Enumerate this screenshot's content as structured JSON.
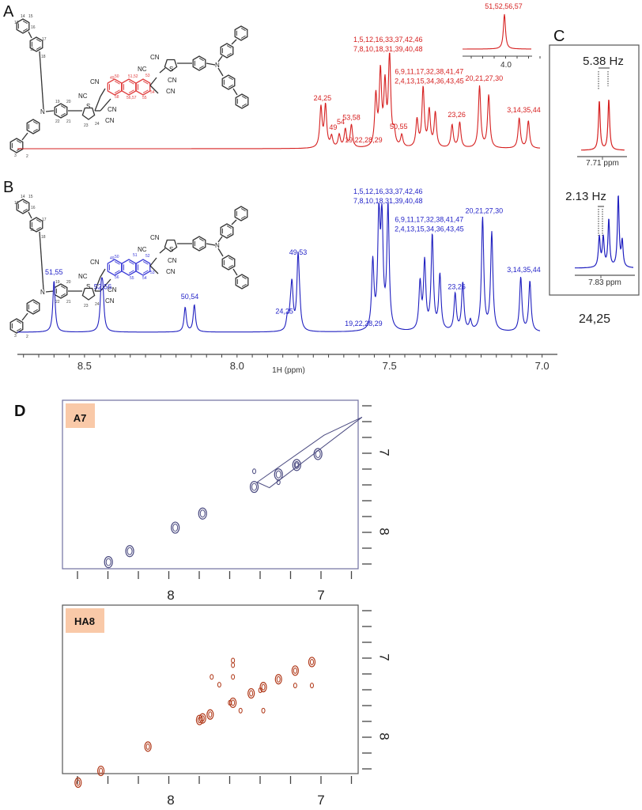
{
  "panels": {
    "A": "A",
    "B": "B",
    "C": "C",
    "D": "D"
  },
  "colors": {
    "red": "#d62020",
    "blue": "#2020c0",
    "navy_contour": "#4a4a80",
    "brown_contour": "#b03818",
    "badge": "#f9c9a8",
    "bond": "#333333"
  },
  "chart_data": [
    {
      "id": "A",
      "type": "line",
      "title": "",
      "series_color": "#d62020",
      "xlabel": "1H (ppm)",
      "xlim": [
        8.72,
        6.95
      ],
      "x_reversed": true,
      "peaks": [
        {
          "ppm": 7.725,
          "height": 0.44
        },
        {
          "ppm": 7.71,
          "height": 0.46
        },
        {
          "ppm": 7.69,
          "height": 0.12
        },
        {
          "ppm": 7.665,
          "height": 0.14
        },
        {
          "ppm": 7.645,
          "height": 0.2
        },
        {
          "ppm": 7.625,
          "height": 0.25
        },
        {
          "ppm": 7.545,
          "height": 0.55
        },
        {
          "ppm": 7.53,
          "height": 0.8
        },
        {
          "ppm": 7.515,
          "height": 0.65
        },
        {
          "ppm": 7.5,
          "height": 1.0
        },
        {
          "ppm": 7.485,
          "height": 0.15
        },
        {
          "ppm": 7.46,
          "height": 0.13
        },
        {
          "ppm": 7.41,
          "height": 0.3
        },
        {
          "ppm": 7.39,
          "height": 0.65
        },
        {
          "ppm": 7.37,
          "height": 0.4
        },
        {
          "ppm": 7.35,
          "height": 0.38
        },
        {
          "ppm": 7.295,
          "height": 0.25
        },
        {
          "ppm": 7.27,
          "height": 0.28
        },
        {
          "ppm": 7.205,
          "height": 0.68
        },
        {
          "ppm": 7.175,
          "height": 0.58
        },
        {
          "ppm": 7.075,
          "height": 0.33
        },
        {
          "ppm": 7.045,
          "height": 0.3
        }
      ],
      "annotations": [
        {
          "text": "24,25",
          "ppm": 7.72
        },
        {
          "text": "49",
          "ppm": 7.685
        },
        {
          "text": "54",
          "ppm": 7.66
        },
        {
          "text": "53,58",
          "ppm": 7.625
        },
        {
          "text": "19,22,28,29",
          "ppm": 7.585
        },
        {
          "text": "1,5,12,16,33,37,42,46",
          "ppm": 7.505,
          "line": 1
        },
        {
          "text": "7,8,10,18,31,39,40,48",
          "ppm": 7.505,
          "line": 2
        },
        {
          "text": "50,55",
          "ppm": 7.47
        },
        {
          "text": "6,9,11,17,32,38,41,47",
          "ppm": 7.37,
          "line": 1
        },
        {
          "text": "2,4,13,15,34,36,43,45",
          "ppm": 7.37,
          "line": 2
        },
        {
          "text": "23,26",
          "ppm": 7.28
        },
        {
          "text": "20,21,27,30",
          "ppm": 7.19
        },
        {
          "text": "3,14,35,44",
          "ppm": 7.06
        }
      ],
      "inset": {
        "label": "51,52,56,57",
        "tick_label": "4.0",
        "peak_ppm": 4.0
      }
    },
    {
      "id": "B",
      "type": "line",
      "series_color": "#2020c0",
      "xlabel": "1H (ppm)",
      "xlim": [
        8.72,
        6.95
      ],
      "x_reversed": true,
      "x_ticks": [
        "8.5",
        "8.0",
        "7.5",
        "7.0"
      ],
      "x_tick_values": [
        8.5,
        8.0,
        7.5,
        7.0
      ],
      "peaks": [
        {
          "ppm": 8.6,
          "height": 0.42
        },
        {
          "ppm": 8.445,
          "height": 0.3
        },
        {
          "ppm": 8.44,
          "height": 0.28
        },
        {
          "ppm": 8.17,
          "height": 0.2
        },
        {
          "ppm": 8.14,
          "height": 0.22
        },
        {
          "ppm": 7.835,
          "height": 0.1
        },
        {
          "ppm": 7.825,
          "height": 0.1
        },
        {
          "ppm": 7.82,
          "height": 0.35
        },
        {
          "ppm": 7.8,
          "height": 0.58
        },
        {
          "ppm": 7.795,
          "height": 0.12
        },
        {
          "ppm": 7.555,
          "height": 0.55
        },
        {
          "ppm": 7.535,
          "height": 0.9
        },
        {
          "ppm": 7.525,
          "height": 0.85
        },
        {
          "ppm": 7.505,
          "height": 1.0
        },
        {
          "ppm": 7.4,
          "height": 0.38
        },
        {
          "ppm": 7.385,
          "height": 0.55
        },
        {
          "ppm": 7.36,
          "height": 0.77
        },
        {
          "ppm": 7.335,
          "height": 0.45
        },
        {
          "ppm": 7.285,
          "height": 0.3
        },
        {
          "ppm": 7.26,
          "height": 0.39
        },
        {
          "ppm": 7.235,
          "height": 0.08
        },
        {
          "ppm": 7.195,
          "height": 0.92
        },
        {
          "ppm": 7.165,
          "height": 0.8
        },
        {
          "ppm": 7.07,
          "height": 0.44
        },
        {
          "ppm": 7.04,
          "height": 0.41
        }
      ],
      "annotations": [
        {
          "text": "51,55",
          "ppm": 8.6
        },
        {
          "text": "52,56",
          "ppm": 8.44
        },
        {
          "text": "50,54",
          "ppm": 8.155
        },
        {
          "text": "24,25",
          "ppm": 7.845
        },
        {
          "text": "49,53",
          "ppm": 7.8
        },
        {
          "text": "19,22,28,29",
          "ppm": 7.585
        },
        {
          "text": "1,5,12,16,33,37,42,46",
          "ppm": 7.505,
          "line": 1
        },
        {
          "text": "7,8,10,18,31,39,40,48",
          "ppm": 7.505,
          "line": 2
        },
        {
          "text": "6,9,11,17,32,38,41,47",
          "ppm": 7.37,
          "line": 1
        },
        {
          "text": "2,4,13,15,34,36,43,45",
          "ppm": 7.37,
          "line": 2
        },
        {
          "text": "23,26",
          "ppm": 7.28
        },
        {
          "text": "20,21,27,30",
          "ppm": 7.19
        },
        {
          "text": "3,14,35,44",
          "ppm": 7.06
        }
      ]
    },
    {
      "id": "C",
      "type": "line",
      "label": "24,25",
      "subplots": [
        {
          "color": "#d62020",
          "coupling": "5.38 Hz",
          "ppm_label": "7.71 ppm"
        },
        {
          "color": "#2020c0",
          "coupling": "2.13 Hz",
          "ppm_label": "7.83 ppm"
        }
      ]
    },
    {
      "id": "D-A7",
      "type": "scatter",
      "badge": "A7",
      "contour_color": "#4a4a80",
      "xlim": [
        8.5,
        6.75
      ],
      "ylim": [
        6.75,
        8.5
      ],
      "x_ticks": [
        "8",
        "7"
      ],
      "y_ticks": [
        "7",
        "8"
      ],
      "diagonal_peaks_ppm": [
        8.4,
        8.26,
        7.96,
        7.78,
        7.44,
        7.28,
        7.16,
        7.02
      ],
      "cross_peaks": [
        {
          "x": 7.44,
          "y": 7.24
        },
        {
          "x": 7.28,
          "y": 7.38
        },
        {
          "x": 7.16,
          "y": 7.16
        }
      ]
    },
    {
      "id": "D-HA8",
      "type": "scatter",
      "badge": "HA8",
      "contour_color": "#b03818",
      "xlim": [
        8.5,
        6.75
      ],
      "ylim": [
        6.75,
        8.5
      ],
      "x_ticks": [
        "8",
        "7"
      ],
      "y_ticks": [
        "7",
        "8"
      ],
      "diagonal_peaks_ppm": [
        8.6,
        8.45,
        8.14,
        7.78,
        7.8,
        7.73,
        7.58,
        7.46,
        7.38,
        7.28,
        7.17,
        7.06
      ],
      "cross_peaks": [
        {
          "x": 7.58,
          "y": 7.04
        },
        {
          "x": 7.58,
          "y": 7.1
        },
        {
          "x": 7.72,
          "y": 7.25
        },
        {
          "x": 7.67,
          "y": 7.35
        },
        {
          "x": 7.53,
          "y": 7.68
        },
        {
          "x": 7.38,
          "y": 7.68
        },
        {
          "x": 7.17,
          "y": 7.36
        },
        {
          "x": 7.06,
          "y": 7.36
        },
        {
          "x": 7.4,
          "y": 7.42
        },
        {
          "x": 7.6,
          "y": 7.58
        },
        {
          "x": 7.58,
          "y": 7.25
        }
      ]
    }
  ]
}
